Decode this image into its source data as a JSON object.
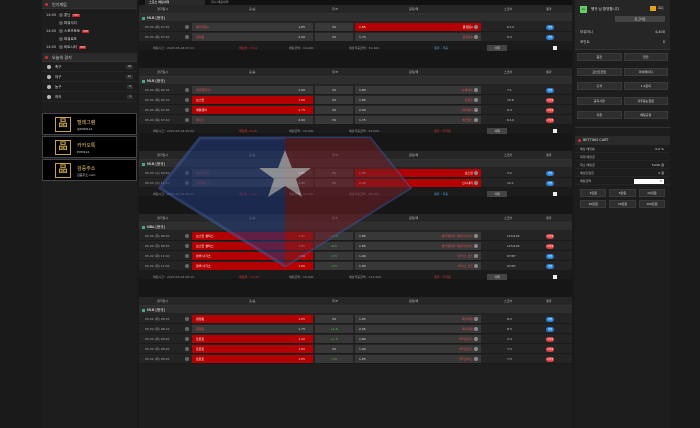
{
  "left": {
    "live_title": "인기게임",
    "live_games": [
      {
        "time": "14:00",
        "name": "롯닌",
        "hot": true
      },
      {
        "time": "",
        "name": "파워사다",
        "hot": false
      },
      {
        "time": "14:00",
        "name": "스포츠토토",
        "hot": true
      },
      {
        "time": "",
        "name": "파워로또",
        "hot": false
      },
      {
        "time": "14:00",
        "name": "비트시티",
        "hot": true
      }
    ],
    "hot_label": "HOT",
    "today_title": "오늘의 경기",
    "sports": [
      {
        "name": "축구",
        "count": "38"
      },
      {
        "name": "야구",
        "count": "21"
      },
      {
        "name": "농구",
        "count": "8"
      },
      {
        "name": "하키",
        "count": "4"
      }
    ],
    "promos": [
      {
        "title": "텔레그램",
        "sub": "@PUM114"
      },
      {
        "title": "카카오톡",
        "sub": "PUM114"
      },
      {
        "title": "검증주소",
        "sub": "검증주소.com"
      }
    ]
  },
  "main": {
    "tabs": [
      "스포츠 베팅내역",
      "미니 베팅내역"
    ],
    "header": {
      "time": "경기일시",
      "home": "홈/승",
      "draw": "무/H",
      "away": "원정/패",
      "score": "스코어",
      "result": "결과"
    },
    "blocks": [
      {
        "league": "MLB [정규]",
        "rows": [
          {
            "time": "05-04 (목) 07:40",
            "home": "메이져팀A",
            "hodd": "1.85",
            "hsel": false,
            "mid": "VS",
            "away": "1.85",
            "aname": "원정팀A",
            "asel": true,
            "score": "6:14",
            "res": "win"
          },
          {
            "time": "05-04 (목) 07:40",
            "home": "원정팀",
            "hodd": "2.00",
            "hsel": false,
            "mid": "VS",
            "away": "1.70",
            "aname": "원정팀B",
            "asel": false,
            "score": "6:3",
            "res": "win"
          }
        ],
        "summary": {
          "bet_time": "배팅시간 : 2023-05-04 07:13",
          "bet_odds": "배팅율 : 3.14",
          "bet_amt": "배팅금액 : 10,000",
          "win_amt": "예상적중금액 : 31,400",
          "result": "결과 : 적중",
          "del": "삭제"
        }
      },
      {
        "league": "MLB [정규]",
        "rows": [
          {
            "time": "05-04 (목) 05:10",
            "home": "필라델피아",
            "hodd": "1.90",
            "hsel": false,
            "mid": "VS",
            "away": "1.80",
            "aname": "뉴욕메츠",
            "asel": false,
            "score": "7:1",
            "res": "win"
          },
          {
            "time": "05-04 (목) 05:10",
            "home": "보스턴",
            "hodd": "1.80",
            "hsel": true,
            "mid": "VS",
            "away": "1.85",
            "aname": "토론토",
            "asel": false,
            "score": "10:6",
            "res": "lose"
          },
          {
            "time": "05-04 (목) 07:40",
            "home": "애틀랜타",
            "hodd": "1.75",
            "hsel": true,
            "mid": "VS",
            "away": "2.00",
            "aname": "마이애미",
            "asel": false,
            "score": "6:4",
            "res": "lose"
          },
          {
            "time": "05-04 (목) 07:40",
            "home": "텍사스",
            "hodd": "2.00",
            "hsel": false,
            "mid": "VS",
            "away": "1.75",
            "aname": "에인절스",
            "asel": false,
            "score": "6:14",
            "res": "lose"
          }
        ],
        "summary": {
          "bet_time": "배팅시간 : 2023-05-04 05:02",
          "bet_odds": "배팅율 : 5.26",
          "bet_amt": "배팅금액 : 10,000",
          "win_amt": "예상적중금액 : 52,600",
          "result": "결과 : 미적중",
          "del": "삭제"
        }
      },
      {
        "league": "MLB [정규]",
        "rows": [
          {
            "time": "05-03 (수) 09:40",
            "home": "클리블랜드",
            "hodd": "1.85",
            "hsel": false,
            "mid": "VS",
            "away": "1.95",
            "aname": "보스턴",
            "asel": true,
            "score": "3:2",
            "res": "win"
          },
          {
            "time": "05-03 (수) 11:10",
            "home": "샌디에이고",
            "hodd": "1.80",
            "hsel": false,
            "mid": "VS",
            "away": "2.00",
            "aname": "신시내티",
            "asel": true,
            "score": "12:1",
            "res": "win"
          }
        ],
        "summary": {
          "bet_time": "배팅시간 : 2023-05-03 09:21",
          "bet_odds": "배팅율 : 3.90",
          "bet_amt": "배팅금액 : 10,000",
          "win_amt": "예상적중금액 : 39,000",
          "result": "결과 : 적중",
          "del": "삭제"
        }
      },
      {
        "league": "NBA [정규]",
        "rows": [
          {
            "time": "05-02 (화) 08:30",
            "home": "보스턴 셀틱스",
            "hodd": "1.85",
            "hsel": true,
            "mid": "-12.5",
            "away": "1.85",
            "aname": "필라델피아 세븐티식서스",
            "asel": false,
            "score": "115/118",
            "res": "lose"
          },
          {
            "time": "05-02 (화) 08:30",
            "home": "보스턴 셀틱스",
            "hodd": "1.85",
            "hsel": true,
            "mid": "-6.5",
            "away": "1.85",
            "aname": "필라델피아 세븐티식서스",
            "asel": false,
            "score": "115/118",
            "res": "lose"
          },
          {
            "time": "05-02 (화) 11:00",
            "home": "덴버 너기츠",
            "hodd": "1.80",
            "hsel": true,
            "mid": "-3.5",
            "away": "1.90",
            "aname": "피닉스 선즈",
            "asel": false,
            "score": "97/87",
            "res": "win"
          },
          {
            "time": "05-02 (화) 11:00",
            "home": "덴버 너기츠",
            "hodd": "1.80",
            "hsel": true,
            "mid": "-2.5",
            "away": "1.90",
            "aname": "피닉스 선즈",
            "asel": false,
            "score": "97/87",
            "res": "win"
          }
        ],
        "summary": {
          "bet_time": "배팅시간 : 2023-05-02 08:12",
          "bet_odds": "배팅율 : 11.33",
          "bet_amt": "배팅금액 : 10,000",
          "win_amt": "예상적중금액 : 113,300",
          "result": "결과 : 미적중",
          "del": "삭제"
        }
      },
      {
        "league": "MLB [정규]",
        "rows": [
          {
            "time": "05-02 (화) 08:10",
            "home": "원정팀",
            "hodd": "1.85",
            "hsel": true,
            "mid": "VS",
            "away": "1.95",
            "aname": "메이져팀",
            "asel": false,
            "score": "8:3",
            "res": "win"
          },
          {
            "time": "05-02 (화) 08:10",
            "home": "원정팀",
            "hodd": "1.75",
            "hsel": false,
            "mid": "+1.5",
            "away": "2.05",
            "aname": "메이져팀",
            "asel": false,
            "score": "8:3",
            "res": "win"
          },
          {
            "time": "05-02 (화) 08:40",
            "home": "토론토",
            "hodd": "1.90",
            "hsel": true,
            "mid": "+1.5",
            "away": "1.80",
            "aname": "볼티모어스",
            "asel": false,
            "score": "2:4",
            "res": "lose"
          },
          {
            "time": "05-02 (화) 08:40",
            "home": "토론토",
            "hodd": "1.80",
            "hsel": true,
            "mid": "VS",
            "away": "1.90",
            "aname": "볼티모어스",
            "asel": false,
            "score": "7:3",
            "res": "lose"
          },
          {
            "time": "05-02 (화) 08:40",
            "home": "토론토",
            "hodd": "1.85",
            "hsel": true,
            "mid": "-1.5",
            "away": "1.95",
            "aname": "볼티모어스",
            "asel": false,
            "score": "7:3",
            "res": "lose"
          }
        ]
      }
    ]
  },
  "right": {
    "level": "Lv",
    "username": "펭귀 님 환영합니다",
    "note_label": "쪽지",
    "logout": "로그아웃",
    "money_label": "보유머니",
    "money": "4,400",
    "point_label": "포인트",
    "point": "0",
    "menu": [
      "충전",
      "환전",
      "포인트전환",
      "마이페이지",
      "출석",
      "1:1문의",
      "공지사항",
      "자주묻는질문",
      "쿠폰",
      "베팅규정"
    ],
    "cart_title": "BETTING CART",
    "cart_rows": [
      {
        "label": "예상 배당률",
        "value": "0.0 %"
      },
      {
        "label": "최대 배당금",
        "value": ""
      },
      {
        "label": "최소 배팅금",
        "value": "5,000 원"
      },
      {
        "label": "예상당첨금",
        "value": "0 원"
      },
      {
        "label": "배팅금액",
        "value": "0"
      }
    ],
    "amounts": [
      "1만원",
      "5만원",
      "10만원",
      "30만원",
      "50만원",
      "100만원"
    ]
  }
}
